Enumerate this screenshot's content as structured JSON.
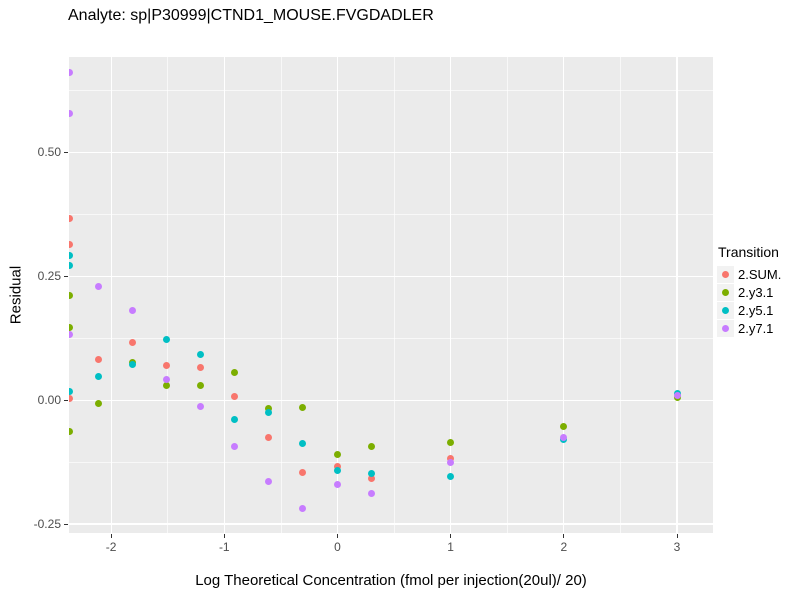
{
  "chart_data": {
    "type": "scatter",
    "title": "Analyte: sp|P30999|CTND1_MOUSE.FVGDADLER",
    "xlabel": "Log Theoretical Concentration (fmol per injection(20ul)/ 20)",
    "ylabel": "Residual",
    "xlim": [
      -2.372,
      3.318
    ],
    "ylim": [
      -0.268,
      0.692
    ],
    "x_major_ticks": [
      -2,
      -1,
      0,
      1,
      2,
      3
    ],
    "x_tick_labels": [
      "-2",
      "-1",
      "0",
      "1",
      "2",
      "3"
    ],
    "x_minor_gridlines": [
      -1.5,
      -0.5,
      0.5,
      1.5,
      2.5
    ],
    "y_major_ticks": [
      -0.25,
      0,
      0.25,
      0.5
    ],
    "y_tick_labels": [
      "-0.25",
      "0.00",
      "0.25",
      "0.50"
    ],
    "y_minor_gridlines": [
      -0.125,
      0.125,
      0.375,
      0.625
    ],
    "grid": "on",
    "panel_background": "#EBEBEB",
    "gridline_color": "#FFFFFF",
    "tick_label_color": "#4D4D4D",
    "legend": {
      "position": "right",
      "title": "Transition",
      "entries": [
        {
          "label": "2.SUM.",
          "color": "#F8766D"
        },
        {
          "label": "2.y3.1",
          "color": "#7CAE00"
        },
        {
          "label": "2.y5.1",
          "color": "#00BFC4"
        },
        {
          "label": "2.y7.1",
          "color": "#C77CFF"
        }
      ]
    },
    "series": [
      {
        "name": "2.SUM.",
        "color": "#F8766D",
        "points": [
          [
            -2.37,
            0.367
          ],
          [
            -2.37,
            0.313
          ],
          [
            -2.37,
            0.004
          ],
          [
            -2.11,
            0.081
          ],
          [
            -1.81,
            0.117
          ],
          [
            -1.51,
            0.069
          ],
          [
            -1.21,
            0.065
          ],
          [
            -0.91,
            0.008
          ],
          [
            -0.61,
            -0.075
          ],
          [
            -0.31,
            -0.145
          ],
          [
            0.0,
            -0.133
          ],
          [
            0.3,
            -0.159
          ],
          [
            1.0,
            -0.118
          ]
        ]
      },
      {
        "name": "2.y3.1",
        "color": "#7CAE00",
        "points": [
          [
            -2.37,
            0.212
          ],
          [
            -2.37,
            0.147
          ],
          [
            -2.37,
            -0.063
          ],
          [
            -2.11,
            -0.006
          ],
          [
            -1.81,
            0.075
          ],
          [
            -1.51,
            0.03
          ],
          [
            -1.21,
            0.03
          ],
          [
            -0.91,
            0.056
          ],
          [
            -0.61,
            -0.016
          ],
          [
            -0.31,
            -0.014
          ],
          [
            0.0,
            -0.109
          ],
          [
            0.3,
            -0.093
          ],
          [
            1.0,
            -0.086
          ],
          [
            2.0,
            -0.054
          ],
          [
            3.0,
            0.006
          ]
        ]
      },
      {
        "name": "2.y5.1",
        "color": "#00BFC4",
        "points": [
          [
            -2.37,
            0.292
          ],
          [
            -2.37,
            0.272
          ],
          [
            -2.37,
            0.018
          ],
          [
            -2.11,
            0.048
          ],
          [
            -1.81,
            0.071
          ],
          [
            -1.51,
            0.122
          ],
          [
            -1.21,
            0.091
          ],
          [
            -0.91,
            -0.04
          ],
          [
            -0.61,
            -0.024
          ],
          [
            -0.31,
            -0.087
          ],
          [
            0.0,
            -0.141
          ],
          [
            0.3,
            -0.147
          ],
          [
            1.0,
            -0.154
          ],
          [
            2.0,
            -0.079
          ],
          [
            3.0,
            0.014
          ]
        ]
      },
      {
        "name": "2.y7.1",
        "color": "#C77CFF",
        "points": [
          [
            -2.37,
            0.661
          ],
          [
            -2.37,
            0.578
          ],
          [
            -2.37,
            0.133
          ],
          [
            -2.11,
            0.23
          ],
          [
            -1.81,
            0.181
          ],
          [
            -1.51,
            0.042
          ],
          [
            -1.21,
            -0.012
          ],
          [
            -0.91,
            -0.094
          ],
          [
            -0.61,
            -0.165
          ],
          [
            -0.31,
            -0.218
          ],
          [
            0.0,
            -0.171
          ],
          [
            0.3,
            -0.188
          ],
          [
            1.0,
            -0.126
          ],
          [
            2.0,
            -0.075
          ],
          [
            3.0,
            0.01
          ]
        ]
      }
    ]
  }
}
